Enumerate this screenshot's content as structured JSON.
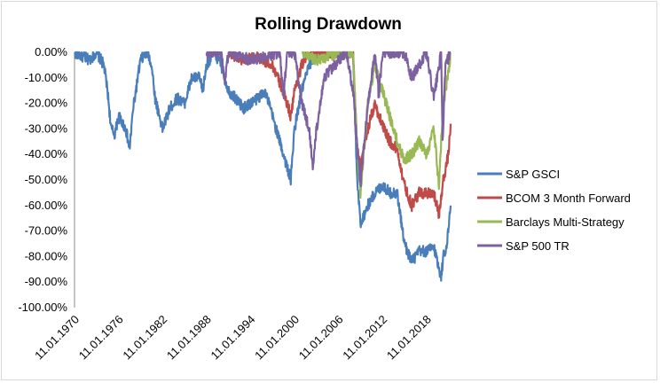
{
  "chart_data": {
    "type": "line",
    "title": "Rolling Drawdown",
    "xlabel": "",
    "ylabel": "",
    "ylim": [
      -1.0,
      0.0
    ],
    "y_ticks": [
      "0.00%",
      "-10.00%",
      "-20.00%",
      "-30.00%",
      "-40.00%",
      "-50.00%",
      "-60.00%",
      "-70.00%",
      "-80.00%",
      "-90.00%",
      "-100.00%"
    ],
    "x_ticks": [
      "11.01.1970",
      "11.01.1976",
      "11.01.1982",
      "11.01.1988",
      "11.01.1994",
      "11.01.2000",
      "11.01.2006",
      "11.01.2012",
      "11.01.2018"
    ],
    "xlim": [
      1970.0,
      2021.3
    ],
    "grid": false,
    "legend_position": "right",
    "series": [
      {
        "name": "S&P GSCI",
        "color": "#4a7ebb",
        "x": [
          1970.0,
          1972.0,
          1973.0,
          1974.0,
          1974.5,
          1975.0,
          1975.5,
          1976.0,
          1977.0,
          1977.5,
          1978.0,
          1979.0,
          1980.0,
          1980.5,
          1981.0,
          1982.0,
          1983.0,
          1984.0,
          1985.0,
          1986.0,
          1987.0,
          1987.5,
          1988.0,
          1989.0,
          1990.0,
          1990.5,
          1991.0,
          1992.0,
          1993.0,
          1994.0,
          1995.0,
          1996.0,
          1997.0,
          1998.0,
          1999.0,
          1999.5,
          2000.0,
          2001.0,
          2002.0,
          2003.0,
          2004.0,
          2005.0,
          2006.0,
          2007.0,
          2008.0,
          2008.5,
          2009.0,
          2010.0,
          2011.0,
          2012.0,
          2013.0,
          2014.0,
          2015.0,
          2016.0,
          2017.0,
          2018.0,
          2019.0,
          2020.0,
          2020.3,
          2020.8,
          2021.3
        ],
        "y": [
          0.0,
          -0.03,
          0.0,
          -0.05,
          -0.15,
          -0.3,
          -0.32,
          -0.25,
          -0.3,
          -0.38,
          -0.22,
          -0.03,
          0.0,
          -0.05,
          -0.18,
          -0.3,
          -0.22,
          -0.18,
          -0.2,
          -0.1,
          -0.1,
          -0.15,
          -0.05,
          0.0,
          -0.05,
          -0.1,
          -0.15,
          -0.18,
          -0.22,
          -0.2,
          -0.18,
          -0.15,
          -0.25,
          -0.35,
          -0.45,
          -0.5,
          -0.3,
          -0.15,
          -0.05,
          0.0,
          0.0,
          0.0,
          0.0,
          0.0,
          0.0,
          -0.48,
          -0.67,
          -0.6,
          -0.55,
          -0.52,
          -0.55,
          -0.55,
          -0.75,
          -0.82,
          -0.78,
          -0.78,
          -0.76,
          -0.88,
          -0.8,
          -0.75,
          -0.6
        ]
      },
      {
        "name": "BCOM 3 Month Forward",
        "color": "#be4b48",
        "x": [
          1991.0,
          1993.0,
          1995.0,
          1997.0,
          1998.0,
          1999.0,
          1999.5,
          2000.0,
          2001.0,
          2002.0,
          2003.0,
          2006.0,
          2008.0,
          2008.5,
          2009.0,
          2010.0,
          2011.0,
          2011.5,
          2012.0,
          2013.0,
          2014.0,
          2015.0,
          2016.0,
          2017.0,
          2018.0,
          2019.0,
          2019.7,
          2020.3,
          2021.0,
          2021.3
        ],
        "y": [
          0.0,
          -0.03,
          -0.02,
          -0.05,
          -0.12,
          -0.2,
          -0.25,
          -0.15,
          -0.05,
          0.0,
          0.0,
          0.0,
          0.0,
          -0.35,
          -0.45,
          -0.3,
          -0.2,
          -0.25,
          -0.28,
          -0.35,
          -0.38,
          -0.52,
          -0.6,
          -0.55,
          -0.55,
          -0.55,
          -0.64,
          -0.5,
          -0.4,
          -0.28
        ]
      },
      {
        "name": "Barclays Multi-Strategy",
        "color": "#98b954",
        "x": [
          2001.0,
          2003.0,
          2006.0,
          2008.0,
          2008.5,
          2009.0,
          2010.0,
          2011.0,
          2012.0,
          2013.0,
          2014.0,
          2015.0,
          2016.0,
          2017.0,
          2018.0,
          2019.0,
          2019.7,
          2020.3,
          2021.0,
          2021.3
        ],
        "y": [
          0.0,
          -0.03,
          0.0,
          0.0,
          -0.35,
          -0.55,
          -0.2,
          -0.05,
          -0.15,
          -0.25,
          -0.35,
          -0.42,
          -0.4,
          -0.35,
          -0.4,
          -0.3,
          -0.52,
          -0.2,
          -0.08,
          0.0
        ]
      },
      {
        "name": "S&P 500 TR",
        "color": "#7d60a0",
        "x": [
          1988.0,
          1990.0,
          1990.5,
          1991.0,
          1994.0,
          1998.0,
          1998.5,
          1999.0,
          2000.0,
          2001.0,
          2002.0,
          2002.5,
          2003.0,
          2004.0,
          2007.0,
          2008.0,
          2008.5,
          2009.0,
          2010.0,
          2011.0,
          2011.5,
          2012.0,
          2015.0,
          2016.0,
          2018.0,
          2019.0,
          2020.0,
          2020.2,
          2020.6,
          2021.3
        ],
        "y": [
          0.0,
          0.0,
          -0.12,
          0.0,
          -0.03,
          0.0,
          -0.18,
          0.0,
          0.0,
          -0.2,
          -0.3,
          -0.45,
          -0.3,
          -0.1,
          0.0,
          -0.15,
          -0.35,
          -0.52,
          -0.2,
          0.0,
          -0.17,
          0.0,
          0.0,
          -0.1,
          0.0,
          -0.18,
          0.0,
          -0.35,
          -0.05,
          0.0
        ]
      }
    ]
  }
}
